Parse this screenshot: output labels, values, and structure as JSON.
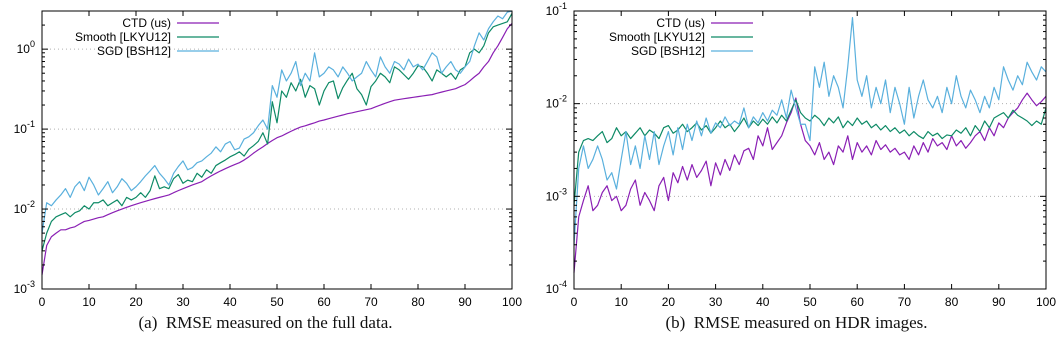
{
  "colors": {
    "ctd": "#8a1fb4",
    "smooth": "#0e8a66",
    "sgd": "#5ab0dd",
    "grid": "#b0b0b0",
    "axis": "#000000"
  },
  "chart_data": [
    {
      "type": "line",
      "caption_label": "(a)",
      "caption_text": "RMSE measured on the full data.",
      "xlim": [
        0,
        100
      ],
      "ylim": [
        0.001,
        3
      ],
      "yscale": "log",
      "xticks": [
        0,
        10,
        20,
        30,
        40,
        50,
        60,
        70,
        80,
        90,
        100
      ],
      "xtick_labels": [
        "0",
        "10",
        "20",
        "30",
        "40",
        "50",
        "60",
        "70",
        "80",
        "90",
        "100"
      ],
      "yticks": [
        0.001,
        0.01,
        0.1,
        1
      ],
      "ytick_labels": [
        {
          "base": "10",
          "exp": "-3"
        },
        {
          "base": "10",
          "exp": "-2"
        },
        {
          "base": "10",
          "exp": "-1"
        },
        {
          "base": "10",
          "exp": "0"
        }
      ],
      "grid": "dotted horizontal",
      "legend_position": "top-left",
      "series": [
        {
          "name": "CTD (us)",
          "color": "#8a1fb4",
          "values": [
            0.0015,
            0.0035,
            0.0045,
            0.005,
            0.0055,
            0.0055,
            0.0058,
            0.006,
            0.0065,
            0.007,
            0.0072,
            0.0075,
            0.0078,
            0.008,
            0.0085,
            0.009,
            0.0095,
            0.01,
            0.0105,
            0.011,
            0.0115,
            0.012,
            0.0125,
            0.013,
            0.0135,
            0.014,
            0.0145,
            0.015,
            0.016,
            0.017,
            0.018,
            0.019,
            0.02,
            0.021,
            0.022,
            0.024,
            0.026,
            0.028,
            0.03,
            0.032,
            0.034,
            0.036,
            0.038,
            0.041,
            0.045,
            0.05,
            0.055,
            0.06,
            0.066,
            0.072,
            0.078,
            0.082,
            0.088,
            0.094,
            0.1,
            0.106,
            0.11,
            0.115,
            0.12,
            0.126,
            0.13,
            0.135,
            0.14,
            0.145,
            0.15,
            0.156,
            0.16,
            0.165,
            0.17,
            0.175,
            0.18,
            0.19,
            0.2,
            0.21,
            0.22,
            0.23,
            0.235,
            0.24,
            0.245,
            0.25,
            0.255,
            0.26,
            0.265,
            0.27,
            0.28,
            0.29,
            0.3,
            0.31,
            0.32,
            0.34,
            0.36,
            0.4,
            0.45,
            0.5,
            0.6,
            0.7,
            0.9,
            1.1,
            1.4,
            1.8,
            2.1
          ]
        },
        {
          "name": "Smooth [LKYU12]",
          "color": "#0e8a66",
          "values": [
            0.003,
            0.005,
            0.007,
            0.008,
            0.0085,
            0.009,
            0.008,
            0.009,
            0.0095,
            0.011,
            0.01,
            0.012,
            0.012,
            0.013,
            0.011,
            0.012,
            0.013,
            0.011,
            0.014,
            0.013,
            0.014,
            0.016,
            0.014,
            0.017,
            0.026,
            0.018,
            0.019,
            0.018,
            0.024,
            0.027,
            0.021,
            0.023,
            0.022,
            0.028,
            0.025,
            0.031,
            0.028,
            0.035,
            0.038,
            0.041,
            0.045,
            0.048,
            0.052,
            0.046,
            0.056,
            0.062,
            0.07,
            0.09,
            0.065,
            0.22,
            0.12,
            0.3,
            0.25,
            0.38,
            0.3,
            0.42,
            0.25,
            0.35,
            0.32,
            0.2,
            0.3,
            0.38,
            0.4,
            0.24,
            0.33,
            0.41,
            0.5,
            0.32,
            0.27,
            0.2,
            0.34,
            0.4,
            0.5,
            0.45,
            0.38,
            0.6,
            0.55,
            0.48,
            0.42,
            0.5,
            0.62,
            0.6,
            0.5,
            0.4,
            0.55,
            0.5,
            0.45,
            0.5,
            0.42,
            0.55,
            0.6,
            0.9,
            1.0,
            0.9,
            1.1,
            1.6,
            1.9,
            2.0,
            2.1,
            2.2,
            2.8
          ]
        },
        {
          "name": "SGD [BSH12]",
          "color": "#5ab0dd",
          "values": [
            0.005,
            0.012,
            0.011,
            0.013,
            0.015,
            0.018,
            0.014,
            0.019,
            0.022,
            0.017,
            0.025,
            0.02,
            0.015,
            0.018,
            0.022,
            0.016,
            0.019,
            0.024,
            0.021,
            0.017,
            0.019,
            0.022,
            0.026,
            0.03,
            0.035,
            0.028,
            0.024,
            0.02,
            0.028,
            0.034,
            0.04,
            0.031,
            0.033,
            0.038,
            0.04,
            0.045,
            0.05,
            0.06,
            0.052,
            0.065,
            0.07,
            0.055,
            0.058,
            0.075,
            0.08,
            0.09,
            0.11,
            0.13,
            0.1,
            0.35,
            0.25,
            0.55,
            0.4,
            0.5,
            0.7,
            0.35,
            0.5,
            0.4,
            0.9,
            0.45,
            0.5,
            0.6,
            0.55,
            0.45,
            0.6,
            0.5,
            0.4,
            0.45,
            0.5,
            0.7,
            0.55,
            0.45,
            0.8,
            0.6,
            0.5,
            0.7,
            0.65,
            0.55,
            0.75,
            0.6,
            0.65,
            0.55,
            0.7,
            0.9,
            0.8,
            0.5,
            0.6,
            0.7,
            0.55,
            0.5,
            0.6,
            0.7,
            1.1,
            1.6,
            1.3,
            1.8,
            2.2,
            2.6,
            2.4,
            2.9,
            3.0
          ]
        }
      ]
    },
    {
      "type": "line",
      "caption_label": "(b)",
      "caption_text": "RMSE measured on HDR images.",
      "xlim": [
        0,
        100
      ],
      "ylim": [
        0.0001,
        0.1
      ],
      "yscale": "log",
      "xticks": [
        0,
        10,
        20,
        30,
        40,
        50,
        60,
        70,
        80,
        90,
        100
      ],
      "xtick_labels": [
        "0",
        "10",
        "20",
        "30",
        "40",
        "50",
        "60",
        "70",
        "80",
        "90",
        "100"
      ],
      "yticks": [
        0.0001,
        0.001,
        0.01,
        0.1
      ],
      "ytick_labels": [
        {
          "base": "10",
          "exp": "-4"
        },
        {
          "base": "10",
          "exp": "-3"
        },
        {
          "base": "10",
          "exp": "-2"
        },
        {
          "base": "10",
          "exp": "-1"
        }
      ],
      "grid": "dotted horizontal",
      "legend_position": "top-left",
      "series": [
        {
          "name": "CTD (us)",
          "color": "#8a1fb4",
          "values": [
            0.00015,
            0.0006,
            0.0009,
            0.0013,
            0.0007,
            0.0008,
            0.0011,
            0.0013,
            0.0009,
            0.001,
            0.0007,
            0.0008,
            0.0012,
            0.0015,
            0.0008,
            0.0011,
            0.0009,
            0.0007,
            0.0013,
            0.0016,
            0.0009,
            0.0018,
            0.0014,
            0.0021,
            0.0015,
            0.0022,
            0.0016,
            0.0019,
            0.0024,
            0.0013,
            0.0023,
            0.0017,
            0.0025,
            0.0019,
            0.0028,
            0.0022,
            0.0031,
            0.0033,
            0.0025,
            0.0045,
            0.0035,
            0.0055,
            0.0032,
            0.0038,
            0.0045,
            0.0062,
            0.008,
            0.0115,
            0.006,
            0.004,
            0.0035,
            0.0028,
            0.0038,
            0.0025,
            0.003,
            0.0022,
            0.0035,
            0.003,
            0.0045,
            0.0025,
            0.0038,
            0.003,
            0.0035,
            0.0028,
            0.004,
            0.0032,
            0.0036,
            0.003,
            0.0033,
            0.0028,
            0.003,
            0.0025,
            0.0035,
            0.0028,
            0.0038,
            0.003,
            0.0042,
            0.0035,
            0.0038,
            0.0032,
            0.0045,
            0.0035,
            0.004,
            0.0033,
            0.0038,
            0.0045,
            0.005,
            0.004,
            0.0055,
            0.0045,
            0.0062,
            0.0055,
            0.007,
            0.008,
            0.009,
            0.011,
            0.013,
            0.011,
            0.0095,
            0.0105,
            0.012
          ]
        },
        {
          "name": "Smooth [LKYU12]",
          "color": "#0e8a66",
          "values": [
            0.0008,
            0.003,
            0.004,
            0.0042,
            0.004,
            0.0045,
            0.005,
            0.0038,
            0.0042,
            0.0055,
            0.0045,
            0.005,
            0.0042,
            0.0048,
            0.0055,
            0.0045,
            0.0052,
            0.0048,
            0.0042,
            0.0055,
            0.0058,
            0.0048,
            0.0052,
            0.006,
            0.005,
            0.0055,
            0.0062,
            0.0052,
            0.0058,
            0.0048,
            0.0055,
            0.0065,
            0.0055,
            0.006,
            0.005,
            0.0058,
            0.007,
            0.0055,
            0.0065,
            0.0058,
            0.0068,
            0.006,
            0.0072,
            0.0062,
            0.0075,
            0.0065,
            0.0085,
            0.011,
            0.008,
            0.007,
            0.0065,
            0.0075,
            0.0068,
            0.0058,
            0.007,
            0.0062,
            0.0072,
            0.0055,
            0.0065,
            0.0058,
            0.007,
            0.006,
            0.0065,
            0.0055,
            0.006,
            0.0052,
            0.0058,
            0.005,
            0.0055,
            0.0048,
            0.0052,
            0.0045,
            0.005,
            0.0045,
            0.0042,
            0.005,
            0.0045,
            0.0048,
            0.0042,
            0.0046,
            0.0045,
            0.0052,
            0.0048,
            0.0055,
            0.0045,
            0.0058,
            0.005,
            0.0065,
            0.0055,
            0.007,
            0.0075,
            0.008,
            0.007,
            0.0085,
            0.0075,
            0.007,
            0.0065,
            0.0058,
            0.0065,
            0.006,
            0.009
          ]
        },
        {
          "name": "SGD [BSH12]",
          "color": "#5ab0dd",
          "values": [
            0.0003,
            0.002,
            0.0035,
            0.002,
            0.0025,
            0.0035,
            0.0025,
            0.0015,
            0.0018,
            0.0012,
            0.0025,
            0.005,
            0.0022,
            0.0035,
            0.002,
            0.0045,
            0.0025,
            0.005,
            0.0022,
            0.0035,
            0.005,
            0.0028,
            0.0055,
            0.0032,
            0.006,
            0.004,
            0.0065,
            0.0045,
            0.007,
            0.0048,
            0.0062,
            0.0055,
            0.0072,
            0.0058,
            0.0065,
            0.006,
            0.009,
            0.0055,
            0.0072,
            0.0062,
            0.008,
            0.0065,
            0.0085,
            0.0075,
            0.011,
            0.007,
            0.014,
            0.009,
            0.006,
            0.006,
            0.004,
            0.025,
            0.015,
            0.028,
            0.012,
            0.02,
            0.015,
            0.009,
            0.025,
            0.085,
            0.018,
            0.012,
            0.02,
            0.009,
            0.015,
            0.01,
            0.018,
            0.008,
            0.015,
            0.01,
            0.006,
            0.015,
            0.007,
            0.012,
            0.018,
            0.011,
            0.009,
            0.012,
            0.008,
            0.015,
            0.01,
            0.02,
            0.012,
            0.009,
            0.014,
            0.011,
            0.008,
            0.012,
            0.009,
            0.015,
            0.011,
            0.025,
            0.018,
            0.014,
            0.02,
            0.016,
            0.028,
            0.022,
            0.018,
            0.025,
            0.022
          ]
        }
      ]
    }
  ]
}
